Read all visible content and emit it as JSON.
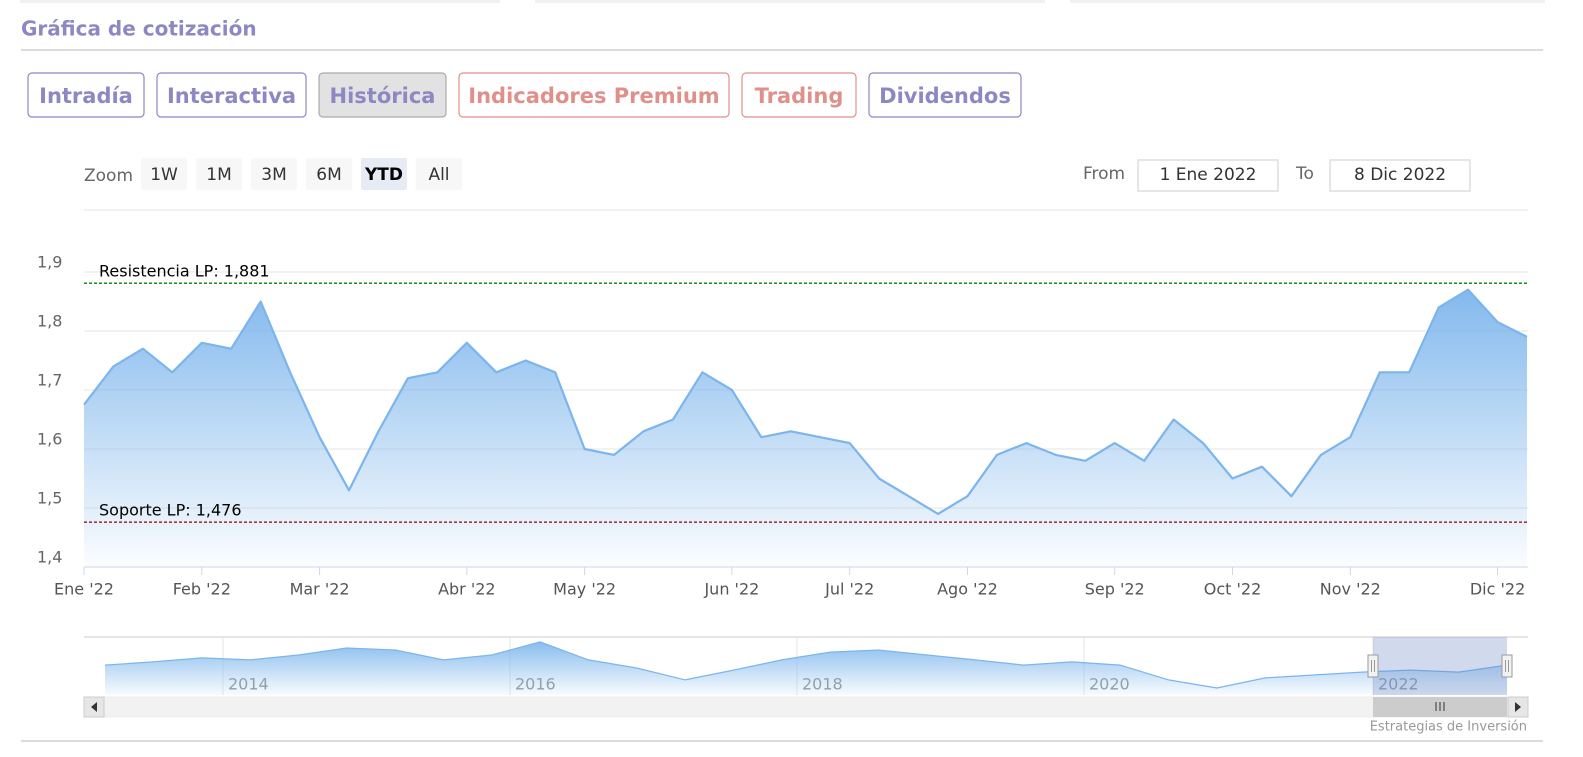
{
  "header": {
    "title": "Gráfica de cotización"
  },
  "tabs": [
    "Intradía",
    "Interactiva",
    "Histórica",
    "Indicadores Premium",
    "Trading",
    "Dividendos"
  ],
  "zoom": {
    "label": "Zoom",
    "buttons": [
      "1W",
      "1M",
      "3M",
      "6M",
      "YTD",
      "All"
    ],
    "selected": "YTD"
  },
  "range": {
    "from_label": "From",
    "from": "1 Ene 2022",
    "to_label": "To",
    "to": "8 Dic 2022"
  },
  "chart_data": {
    "type": "area",
    "color": "#7cb5ec",
    "grid": true,
    "x": [
      "Ene '22",
      null,
      null,
      null,
      "Feb '22",
      null,
      null,
      null,
      "Mar '22",
      null,
      null,
      null,
      null,
      "Abr '22",
      null,
      null,
      null,
      "May '22",
      null,
      null,
      null,
      null,
      "Jun '22",
      null,
      null,
      null,
      "Jul '22",
      null,
      null,
      null,
      "Ago '22",
      null,
      null,
      null,
      null,
      "Sep '22",
      null,
      null,
      null,
      "Oct '22",
      null,
      null,
      null,
      "Nov '22",
      null,
      null,
      null,
      null,
      "Dic '22",
      null
    ],
    "values": [
      1.675,
      1.74,
      1.77,
      1.73,
      1.78,
      1.77,
      1.85,
      1.73,
      1.62,
      1.53,
      1.63,
      1.72,
      1.73,
      1.78,
      1.73,
      1.75,
      1.73,
      1.6,
      1.59,
      1.63,
      1.65,
      1.73,
      1.7,
      1.62,
      1.63,
      1.62,
      1.61,
      1.55,
      1.52,
      1.49,
      1.52,
      1.59,
      1.61,
      1.59,
      1.58,
      1.61,
      1.58,
      1.65,
      1.61,
      1.55,
      1.57,
      1.52,
      1.59,
      1.62,
      1.73,
      1.73,
      1.84,
      1.87,
      1.815,
      1.79
    ],
    "ylim": [
      1.4,
      1.9
    ],
    "yticks": [
      {
        "value": 1.4,
        "label": "1,4"
      },
      {
        "value": 1.5,
        "label": "1,5"
      },
      {
        "value": 1.6,
        "label": "1,6"
      },
      {
        "value": 1.7,
        "label": "1,7"
      },
      {
        "value": 1.8,
        "label": "1,8"
      },
      {
        "value": 1.9,
        "label": "1,9"
      }
    ],
    "plot_lines": [
      {
        "label": "Resistencia LP: 1,881",
        "value": 1.881,
        "color": "#008000"
      },
      {
        "label": "Soporte LP: 1,476",
        "value": 1.476,
        "color": "#8b0000"
      }
    ]
  },
  "navigator": {
    "labels": [
      "2014",
      "2016",
      "2018",
      "2020",
      "2022"
    ],
    "values": [
      2.03,
      2.14,
      2.28,
      2.21,
      2.38,
      2.62,
      2.55,
      2.21,
      2.38,
      2.83,
      2.21,
      1.93,
      1.52,
      1.86,
      2.21,
      2.48,
      2.55,
      2.38,
      2.21,
      2.03,
      2.14,
      2.03,
      1.52,
      1.24,
      1.59,
      1.69,
      1.79,
      1.86,
      1.79,
      2.03
    ],
    "ylim": [
      1.0,
      3.0
    ]
  },
  "credit": "Estrategias de Inversión"
}
